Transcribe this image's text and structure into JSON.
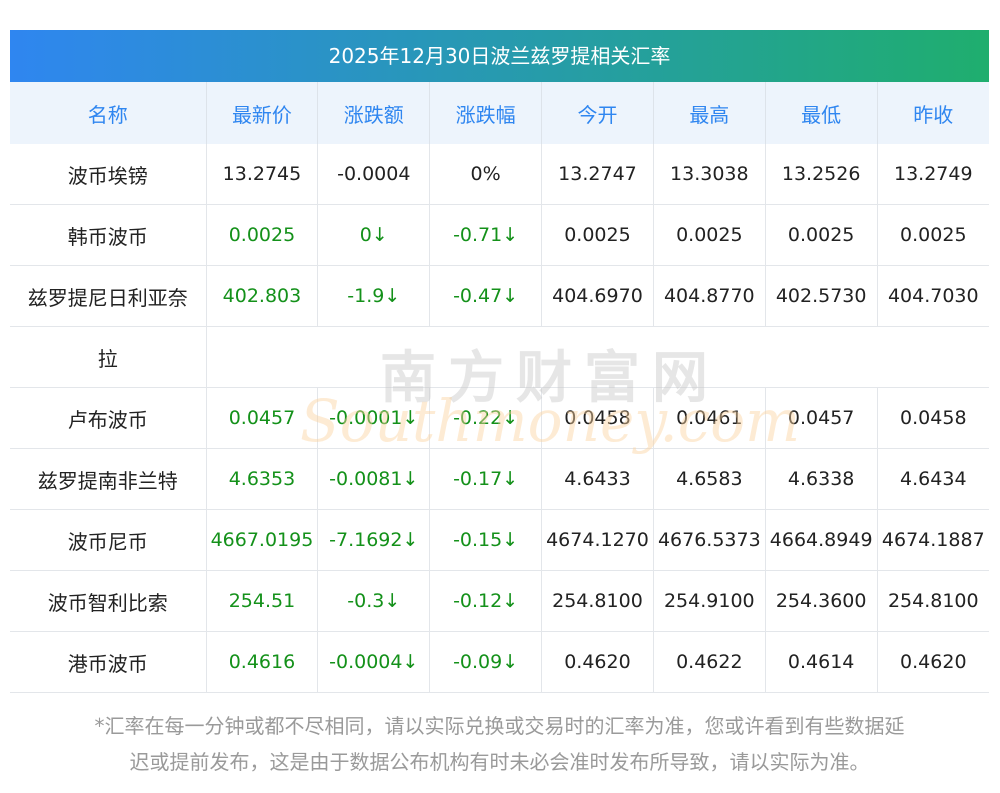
{
  "title": "2025年12月30日波兰兹罗提相关汇率",
  "headers": [
    "名称",
    "最新价",
    "涨跌额",
    "涨跌幅",
    "今开",
    "最高",
    "最低",
    "昨收"
  ],
  "rows": [
    [
      "波币埃镑",
      "13.2745",
      "-0.0004",
      "0%",
      "13.2747",
      "13.3038",
      "13.2526",
      "13.2749"
    ],
    [
      "韩币波币",
      "0.0025",
      "0↓",
      "-0.71↓",
      "0.0025",
      "0.0025",
      "0.0025",
      "0.0025"
    ],
    [
      "兹罗提尼日利亚奈",
      "402.803",
      "-1.9↓",
      "-0.47↓",
      "404.6970",
      "404.8770",
      "402.5730",
      "404.7030"
    ],
    [
      "拉",
      "",
      "",
      "",
      "",
      "",
      "",
      ""
    ],
    [
      "卢布波币",
      "0.0457",
      "-0.0001↓",
      "-0.22↓",
      "0.0458",
      "0.0461",
      "0.0457",
      "0.0458"
    ],
    [
      "兹罗提南非兰特",
      "4.6353",
      "-0.0081↓",
      "-0.17↓",
      "4.6433",
      "4.6583",
      "4.6338",
      "4.6434"
    ],
    [
      "波币尼币",
      "4667.0195",
      "-7.1692↓",
      "-0.15↓",
      "4674.1270",
      "4676.5373",
      "4664.8949",
      "4674.1887"
    ],
    [
      "波币智利比索",
      "254.51",
      "-0.3↓",
      "-0.12↓",
      "254.8100",
      "254.9100",
      "254.3600",
      "254.8100"
    ],
    [
      "港币波币",
      "0.4616",
      "-0.0004↓",
      "-0.09↓",
      "0.4620",
      "0.4622",
      "0.4614",
      "0.4620"
    ]
  ],
  "watermark": {
    "cn": "南方财富网",
    "en": "Southmoney.com"
  },
  "footnote_line1": "*汇率在每一分钟或都不尽相同，请以实际兑换或交易时的汇率为准，您或许看到有些数据延",
  "footnote_line2": "迟或提前发布，这是由于数据公布机构有时未必会准时发布所导致，请以实际为准。",
  "colors": {
    "header_text": "#2f86f0",
    "down": "#14911a",
    "title_left": "#2f86f0",
    "title_right": "#1fae6e"
  }
}
